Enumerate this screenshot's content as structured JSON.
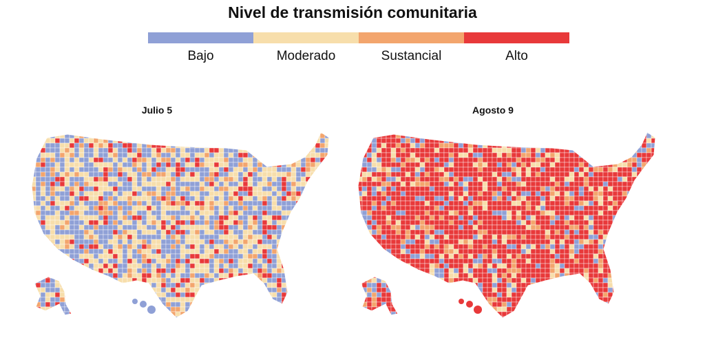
{
  "title": "Nivel de transmisión comunitaria",
  "legend": [
    {
      "label": "Bajo",
      "color": "#8fa0d6"
    },
    {
      "label": "Moderado",
      "color": "#f7deab"
    },
    {
      "label": "Sustancial",
      "color": "#f3a56d"
    },
    {
      "label": "Alto",
      "color": "#e8393a"
    }
  ],
  "maps": [
    {
      "title": "Julio 5",
      "dominant_level": "Bajo",
      "mix": [
        "#8fa0d6",
        "#f7deab",
        "#8fa0d6",
        "#f7deab",
        "#e8393a",
        "#f3a56d",
        "#8fa0d6",
        "#f7deab"
      ]
    },
    {
      "title": "Agosto 9",
      "dominant_level": "Alto",
      "mix": [
        "#e8393a",
        "#e8393a",
        "#e8393a",
        "#e8393a",
        "#e8393a",
        "#f3a56d",
        "#8fa0d6",
        "#f7deab"
      ]
    }
  ]
}
